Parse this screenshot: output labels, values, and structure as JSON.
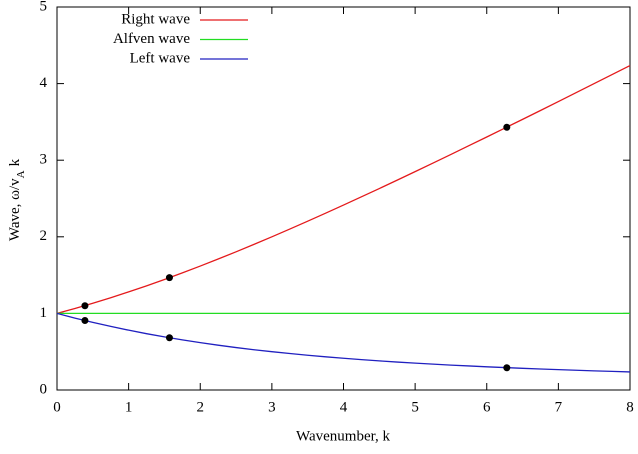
{
  "chart_data": {
    "type": "line",
    "xlabel": "Wavenumber, k",
    "ylabel": "Wave, ω/v",
    "ylabel_sub": "A",
    "ylabel_tail": "k",
    "xlim": [
      0,
      8
    ],
    "ylim": [
      0,
      5
    ],
    "xticks": [
      0,
      1,
      2,
      3,
      4,
      5,
      6,
      7,
      8
    ],
    "yticks": [
      0,
      1,
      2,
      3,
      4,
      5
    ],
    "legend": "top-left",
    "x": [
      0,
      0.25,
      0.5,
      0.75,
      1,
      1.25,
      1.5,
      1.75,
      2,
      2.25,
      2.5,
      2.75,
      3,
      3.25,
      3.5,
      3.75,
      4,
      4.25,
      4.5,
      4.75,
      5,
      5.25,
      5.5,
      5.75,
      6,
      6.25,
      6.5,
      6.75,
      7,
      7.25,
      7.5,
      7.75,
      8
    ],
    "series": [
      {
        "name": "Right wave",
        "color": "#e41a1c",
        "values": [
          1,
          1.064,
          1.133,
          1.205,
          1.281,
          1.36,
          1.443,
          1.529,
          1.618,
          1.71,
          1.804,
          1.901,
          2.0,
          2.101,
          2.204,
          2.308,
          2.414,
          2.522,
          2.63,
          2.74,
          2.851,
          2.963,
          3.075,
          3.189,
          3.303,
          3.418,
          3.533,
          3.649,
          3.766,
          3.883,
          4.0,
          4.118,
          4.236
        ]
      },
      {
        "name": "Alfven wave",
        "color": "#22dd22",
        "values": [
          1,
          1,
          1,
          1,
          1,
          1,
          1,
          1,
          1,
          1,
          1,
          1,
          1,
          1,
          1,
          1,
          1,
          1,
          1,
          1,
          1,
          1,
          1,
          1,
          1,
          1,
          1,
          1,
          1,
          1,
          1,
          1,
          1
        ]
      },
      {
        "name": "Left wave",
        "color": "#2020c0",
        "values": [
          1,
          0.939,
          0.883,
          0.83,
          0.781,
          0.735,
          0.693,
          0.654,
          0.618,
          0.585,
          0.554,
          0.526,
          0.5,
          0.476,
          0.454,
          0.433,
          0.414,
          0.397,
          0.38,
          0.365,
          0.351,
          0.338,
          0.325,
          0.314,
          0.303,
          0.293,
          0.283,
          0.274,
          0.266,
          0.258,
          0.25,
          0.243,
          0.236
        ]
      }
    ],
    "markers": {
      "color": "#000000",
      "x": [
        0.39,
        0.39,
        1.57,
        1.57,
        6.28,
        6.28
      ],
      "y": [
        1.1,
        0.907,
        1.467,
        0.682,
        3.43,
        0.29
      ]
    }
  }
}
